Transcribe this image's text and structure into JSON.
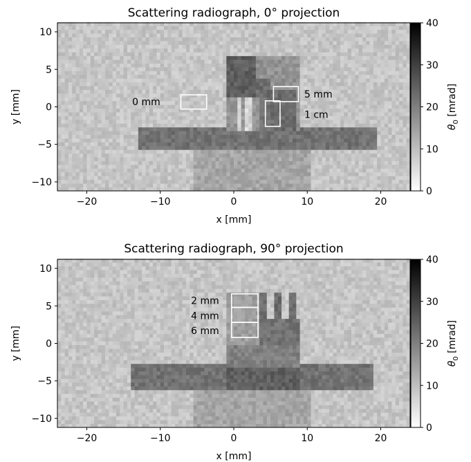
{
  "chart_data": [
    {
      "type": "heatmap",
      "title": "Scattering radiograph, 0° projection",
      "xlabel": "x [mm]",
      "ylabel": "y [mm]",
      "xlim": [
        -24,
        24
      ],
      "ylim": [
        -11.2,
        11.2
      ],
      "xticks": [
        -20,
        -10,
        0,
        10,
        20
      ],
      "yticks": [
        -10,
        -5,
        0,
        5,
        10
      ],
      "xtick_labels": [
        "−20",
        "−10",
        "0",
        "10",
        "20"
      ],
      "ytick_labels": [
        "−10",
        "−5",
        "0",
        "5",
        "10"
      ],
      "colorbar": {
        "label": "θ0 [mrad]",
        "min": 0,
        "max": 40,
        "ticks": [
          0,
          10,
          20,
          30,
          40
        ],
        "tick_labels": [
          "0",
          "10",
          "20",
          "30",
          "40"
        ],
        "colormap": "gray_r"
      },
      "background_value": 9,
      "regions": [
        {
          "shape": "rect",
          "x": [
            -5.3,
            10.7
          ],
          "y": [
            -11.2,
            -5.5
          ],
          "value": 14
        },
        {
          "shape": "rect",
          "x": [
            -13,
            19.5
          ],
          "y": [
            -5.6,
            -2.8
          ],
          "value": 22
        },
        {
          "shape": "rect",
          "x": [
            -1,
            9
          ],
          "y": [
            -3,
            6.8
          ],
          "value": 17
        },
        {
          "shape": "rect",
          "x": [
            -1,
            3
          ],
          "y": [
            1.5,
            6.8
          ],
          "value": 25
        },
        {
          "shape": "rect",
          "x": [
            3,
            5
          ],
          "y": [
            1,
            4
          ],
          "value": 23
        },
        {
          "shape": "rect",
          "x": [
            0,
            3.5
          ],
          "y": [
            -3,
            1.2
          ],
          "value": 16
        },
        {
          "shape": "rect",
          "x": [
            0.3,
            0.9
          ],
          "y": [
            -3,
            1.2
          ],
          "value": 6
        },
        {
          "shape": "rect",
          "x": [
            1.3,
            1.8
          ],
          "y": [
            -3,
            1.2
          ],
          "value": 6
        },
        {
          "shape": "rect",
          "x": [
            2.2,
            2.6
          ],
          "y": [
            -3,
            1.2
          ],
          "value": 7
        },
        {
          "shape": "rect",
          "x": [
            3.4,
            5.2
          ],
          "y": [
            -3,
            1.5
          ],
          "value": 22
        },
        {
          "shape": "rect",
          "x": [
            5,
            8.5
          ],
          "y": [
            -3,
            2.5
          ],
          "value": 23
        }
      ],
      "annotations": [
        {
          "label": "0 mm",
          "box": {
            "x": [
              -7.2,
              -3.7
            ],
            "y": [
              -0.3,
              1.6
            ]
          },
          "label_pos": [
            -10,
            0.7
          ]
        },
        {
          "label": "5 mm",
          "box": {
            "x": [
              5.4,
              8.8
            ],
            "y": [
              0.7,
              2.7
            ]
          },
          "label_pos": [
            9.6,
            1.7
          ]
        },
        {
          "label": "1 cm",
          "box": {
            "x": [
              4.3,
              6.3
            ],
            "y": [
              -2.6,
              0.8
            ]
          },
          "label_pos": [
            9.6,
            -1
          ]
        }
      ]
    },
    {
      "type": "heatmap",
      "title": "Scattering radiograph, 90° projection",
      "xlabel": "x [mm]",
      "ylabel": "y [mm]",
      "xlim": [
        -24,
        24
      ],
      "ylim": [
        -11.2,
        11.2
      ],
      "xticks": [
        -20,
        -10,
        0,
        10,
        20
      ],
      "yticks": [
        -10,
        -5,
        0,
        5,
        10
      ],
      "xtick_labels": [
        "−20",
        "−10",
        "0",
        "10",
        "20"
      ],
      "ytick_labels": [
        "−10",
        "−5",
        "0",
        "5",
        "10"
      ],
      "colorbar": {
        "label": "θ0 [mrad]",
        "min": 0,
        "max": 40,
        "ticks": [
          0,
          10,
          20,
          30,
          40
        ],
        "tick_labels": [
          "0",
          "10",
          "20",
          "30",
          "40"
        ],
        "colormap": "gray_r"
      },
      "background_value": 9,
      "regions": [
        {
          "shape": "rect",
          "x": [
            -5.3,
            10.7
          ],
          "y": [
            -11.2,
            -5.5
          ],
          "value": 14
        },
        {
          "shape": "rect",
          "x": [
            -14,
            19
          ],
          "y": [
            -6,
            -2.8
          ],
          "value": 22
        },
        {
          "shape": "rect",
          "x": [
            -1,
            9
          ],
          "y": [
            -3,
            3
          ],
          "value": 20
        },
        {
          "shape": "rect",
          "x": [
            -1,
            9
          ],
          "y": [
            -6,
            -3
          ],
          "value": 25
        },
        {
          "shape": "rect",
          "x": [
            -1,
            3.3
          ],
          "y": [
            0,
            6.8
          ],
          "value": 15
        },
        {
          "shape": "rect",
          "x": [
            3.3,
            9
          ],
          "y": [
            0,
            3.2
          ],
          "value": 22
        },
        {
          "shape": "rect",
          "x": [
            3.3,
            4.3
          ],
          "y": [
            3.2,
            6.8
          ],
          "value": 23
        },
        {
          "shape": "rect",
          "x": [
            5.5,
            6.5
          ],
          "y": [
            3.2,
            6.8
          ],
          "value": 23
        },
        {
          "shape": "rect",
          "x": [
            7.6,
            8.6
          ],
          "y": [
            3.2,
            6.8
          ],
          "value": 23
        }
      ],
      "annotations": [
        {
          "label": "2 mm",
          "box": {
            "x": [
              -0.3,
              3.3
            ],
            "y": [
              4.8,
              6.6
            ]
          },
          "label_pos": [
            -2,
            5.7
          ]
        },
        {
          "label": "4 mm",
          "box": {
            "x": [
              -0.3,
              3.3
            ],
            "y": [
              2.8,
              4.8
            ]
          },
          "label_pos": [
            -2,
            3.7
          ]
        },
        {
          "label": "6 mm",
          "box": {
            "x": [
              -0.3,
              3.3
            ],
            "y": [
              0.8,
              2.8
            ]
          },
          "label_pos": [
            -2,
            1.7
          ]
        }
      ]
    }
  ]
}
